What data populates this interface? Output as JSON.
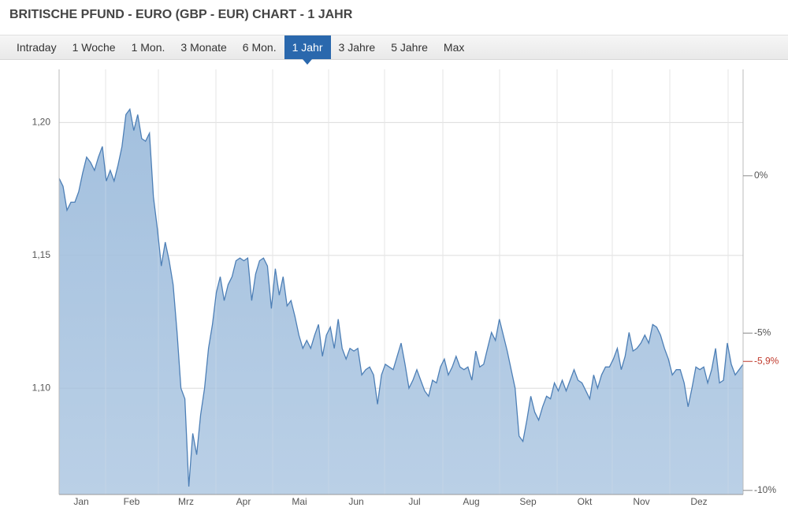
{
  "title": "BRITISCHE PFUND - EURO (GBP - EUR) CHART - 1 JAHR",
  "tabs": [
    "Intraday",
    "1 Woche",
    "1 Mon.",
    "3 Monate",
    "6 Mon.",
    "1 Jahr",
    "3 Jahre",
    "5 Jahre",
    "Max"
  ],
  "active_tab": 5,
  "chart_data": {
    "type": "area",
    "months": [
      "Jan",
      "Feb",
      "Mrz",
      "Apr",
      "Mai",
      "Jun",
      "Jul",
      "Aug",
      "Sep",
      "Okt",
      "Nov",
      "Dez"
    ],
    "values": [
      1.179,
      1.176,
      1.167,
      1.17,
      1.17,
      1.174,
      1.181,
      1.187,
      1.185,
      1.182,
      1.187,
      1.191,
      1.178,
      1.182,
      1.178,
      1.184,
      1.191,
      1.203,
      1.205,
      1.197,
      1.203,
      1.194,
      1.193,
      1.196,
      1.172,
      1.16,
      1.146,
      1.155,
      1.148,
      1.139,
      1.121,
      1.1,
      1.096,
      1.063,
      1.083,
      1.075,
      1.09,
      1.1,
      1.115,
      1.124,
      1.136,
      1.142,
      1.133,
      1.139,
      1.142,
      1.148,
      1.149,
      1.148,
      1.149,
      1.133,
      1.143,
      1.148,
      1.149,
      1.146,
      1.13,
      1.145,
      1.135,
      1.142,
      1.131,
      1.133,
      1.127,
      1.12,
      1.115,
      1.118,
      1.115,
      1.12,
      1.124,
      1.112,
      1.12,
      1.123,
      1.115,
      1.126,
      1.115,
      1.111,
      1.115,
      1.114,
      1.115,
      1.105,
      1.107,
      1.108,
      1.105,
      1.094,
      1.105,
      1.109,
      1.108,
      1.107,
      1.112,
      1.117,
      1.109,
      1.1,
      1.103,
      1.107,
      1.103,
      1.099,
      1.097,
      1.103,
      1.102,
      1.108,
      1.111,
      1.105,
      1.108,
      1.112,
      1.108,
      1.107,
      1.108,
      1.103,
      1.114,
      1.108,
      1.109,
      1.115,
      1.121,
      1.118,
      1.126,
      1.12,
      1.114,
      1.107,
      1.1,
      1.082,
      1.08,
      1.088,
      1.097,
      1.091,
      1.088,
      1.093,
      1.097,
      1.096,
      1.102,
      1.099,
      1.103,
      1.099,
      1.103,
      1.107,
      1.103,
      1.102,
      1.099,
      1.096,
      1.105,
      1.1,
      1.105,
      1.108,
      1.108,
      1.111,
      1.115,
      1.107,
      1.112,
      1.121,
      1.114,
      1.115,
      1.117,
      1.12,
      1.117,
      1.124,
      1.123,
      1.12,
      1.115,
      1.111,
      1.105,
      1.107,
      1.107,
      1.102,
      1.093,
      1.1,
      1.108,
      1.107,
      1.108,
      1.102,
      1.107,
      1.115,
      1.102,
      1.103,
      1.117,
      1.109,
      1.105,
      1.107,
      1.109
    ],
    "ylim": [
      1.06,
      1.22
    ],
    "yticks": [
      {
        "value": 1.1,
        "label": "1,10"
      },
      {
        "value": 1.15,
        "label": "1,15"
      },
      {
        "value": 1.2,
        "label": "1,20"
      }
    ],
    "y2lim": [
      -10.13,
      3.38
    ],
    "y2ticks": [
      {
        "value": -10,
        "label": "-10%"
      },
      {
        "value": -5,
        "label": "-5%"
      },
      {
        "value": 0,
        "label": "0%"
      }
    ],
    "last_change": {
      "value": -5.9,
      "label": "-5,9%"
    },
    "color": "#4d7fb6",
    "fill": "#a3c0de",
    "change_color": "#c0392b",
    "grid": true
  }
}
